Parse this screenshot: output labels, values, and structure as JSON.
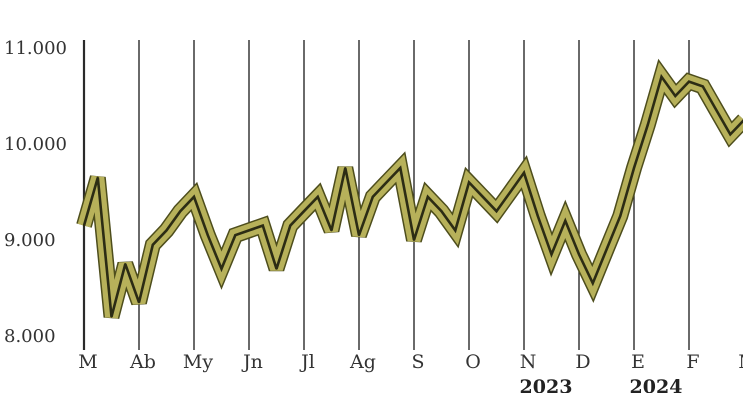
{
  "chart_data": {
    "type": "line",
    "title": "",
    "xlabel": "",
    "ylabel": "",
    "ylim": [
      8000,
      11000
    ],
    "y_ticks": [
      "11.000",
      "10.000",
      "9.000",
      "8.000"
    ],
    "y_tick_values": [
      11000,
      10000,
      9000,
      8000
    ],
    "month_ticks": [
      {
        "label": "M",
        "index": 0
      },
      {
        "label": "Ab",
        "index": 4
      },
      {
        "label": "My",
        "index": 8
      },
      {
        "label": "Jn",
        "index": 12
      },
      {
        "label": "Jl",
        "index": 16
      },
      {
        "label": "Ag",
        "index": 20
      },
      {
        "label": "S",
        "index": 24
      },
      {
        "label": "O",
        "index": 28
      },
      {
        "label": "N",
        "index": 32
      },
      {
        "label": "D",
        "index": 36
      },
      {
        "label": "E",
        "index": 40
      },
      {
        "label": "F",
        "index": 44
      },
      {
        "label": "M",
        "index": 48
      }
    ],
    "year_labels": [
      {
        "label": "2023",
        "index": 32
      },
      {
        "label": "2024",
        "index": 40
      }
    ],
    "x_index_max": 48,
    "series": [
      {
        "name": "",
        "values": [
          9150,
          9650,
          8200,
          8750,
          8350,
          8950,
          9100,
          9300,
          9450,
          9050,
          8700,
          9050,
          9100,
          9150,
          8700,
          9150,
          9300,
          9450,
          9100,
          9750,
          9050,
          9450,
          9600,
          9750,
          9000,
          9450,
          9300,
          9100,
          9600,
          9450,
          9300,
          9500,
          9700,
          9250,
          8850,
          9200,
          8850,
          8550,
          8900,
          9250,
          9750,
          10200,
          10700,
          10500,
          10650,
          10600,
          10350,
          10100,
          10250
        ],
        "color": "#b7b15a"
      }
    ],
    "colors": {
      "band": "#b7b15a",
      "band_edge": "#4d4d1c",
      "center_line": "#2c2c14",
      "gridline": "#2a2a2a",
      "axis_text": "#333333"
    }
  }
}
